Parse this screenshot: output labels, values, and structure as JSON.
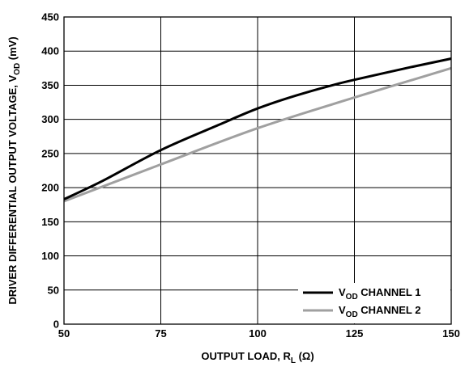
{
  "chart_data": {
    "type": "line",
    "xlabel": "OUTPUT LOAD, R",
    "xlabel_sub": "L",
    "xlabel_suffix": " (Ω)",
    "ylabel": "DRIVER DIFFERENTIAL OUTPUT VOLTAGE, V",
    "ylabel_sub": "OD",
    "ylabel_suffix": " (mV)",
    "xlim": [
      50,
      150
    ],
    "ylim": [
      0,
      450
    ],
    "xticks": [
      50,
      75,
      100,
      125,
      150
    ],
    "yticks": [
      0,
      50,
      100,
      150,
      200,
      250,
      300,
      350,
      400,
      450
    ],
    "grid": true,
    "legend_position": "bottom-right",
    "series": [
      {
        "name_main": "V",
        "name_sub": "OD",
        "name_rest": " CHANNEL 1",
        "color": "#000000",
        "x": [
          50,
          60,
          75,
          90,
          100,
          110,
          120,
          125,
          140,
          150
        ],
        "y": [
          183,
          210,
          255,
          292,
          316,
          335,
          351,
          358,
          377,
          389
        ]
      },
      {
        "name_main": "V",
        "name_sub": "OD",
        "name_rest": " CHANNEL 2",
        "color": "#a0a0a0",
        "x": [
          50,
          75,
          100,
          125,
          150
        ],
        "y": [
          180,
          234,
          287,
          332,
          375
        ]
      }
    ]
  }
}
